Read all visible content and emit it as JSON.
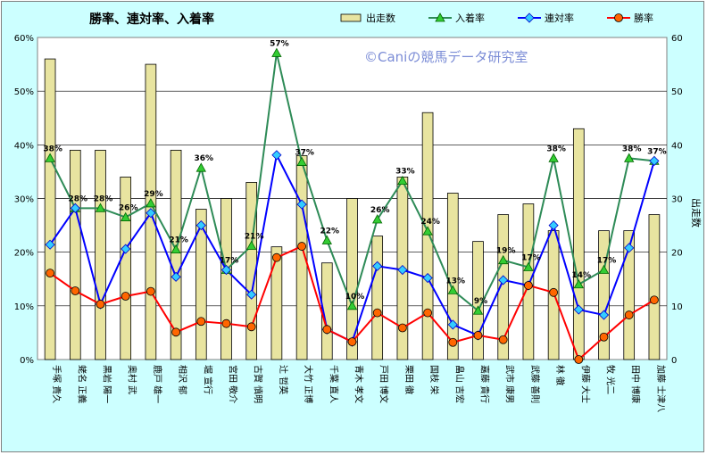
{
  "chart_data": {
    "type": "bar+line",
    "title": "勝率、連対率、入着率",
    "watermark": "©Caniの競馬データ研究室",
    "y2label": "出走数",
    "ylim": [
      0,
      60
    ],
    "y2lim": [
      0,
      60
    ],
    "y_ticks": [
      "0%",
      "10%",
      "20%",
      "30%",
      "40%",
      "50%",
      "60%"
    ],
    "y2_ticks": [
      "0",
      "10",
      "20",
      "30",
      "40",
      "50",
      "60"
    ],
    "grid": true,
    "legend_position": "top",
    "categories": [
      "手塚 貴久",
      "蛯名 正義",
      "黒岩 陽一",
      "奥村 武",
      "鹿戸 雄一",
      "相沢 郁",
      "堀 宣行",
      "宮田 敬介",
      "古賀 慎明",
      "辻 哲英",
      "大竹 正博",
      "千葉 直人",
      "青木 孝文",
      "戸田 博文",
      "栗田 徹",
      "国枝 栄",
      "畠山 吉宏",
      "嘉藤 貴行",
      "武市 康男",
      "武藤 善則",
      "林 徹",
      "伊藤 大士",
      "牧 光二",
      "田中 博康",
      "加藤 士津八"
    ],
    "series": [
      {
        "name": "出走数",
        "type": "bar",
        "axis": "right",
        "color": "#e8e4a0",
        "values": [
          56,
          39,
          39,
          34,
          55,
          39,
          28,
          30,
          33,
          21,
          38,
          18,
          30,
          23,
          34,
          46,
          31,
          22,
          27,
          29,
          24,
          43,
          24,
          24,
          27
        ]
      },
      {
        "name": "入着率",
        "type": "line",
        "axis": "left",
        "color": "#2e8b57",
        "marker": "triangle",
        "values": [
          37.5,
          28.2,
          28.2,
          26.5,
          29.1,
          20.5,
          35.7,
          16.7,
          21.2,
          57.1,
          36.8,
          22.2,
          10.0,
          26.1,
          33.3,
          23.9,
          12.9,
          9.1,
          18.5,
          17.2,
          37.5,
          14.0,
          16.7,
          37.5,
          37.0
        ]
      },
      {
        "name": "連対率",
        "type": "line",
        "axis": "left",
        "color": "#0000ff",
        "marker": "diamond",
        "values": [
          21.4,
          28.2,
          10.3,
          20.6,
          27.3,
          15.4,
          25.0,
          16.7,
          12.1,
          38.1,
          28.9,
          5.6,
          3.3,
          17.4,
          16.7,
          15.2,
          6.5,
          4.5,
          14.8,
          13.8,
          25.0,
          9.3,
          8.3,
          20.8,
          37.0
        ]
      },
      {
        "name": "勝率",
        "type": "line",
        "axis": "left",
        "color": "#ff0000",
        "marker": "circle",
        "values": [
          16.1,
          12.8,
          10.3,
          11.8,
          12.7,
          5.1,
          7.1,
          6.7,
          6.1,
          19.0,
          21.1,
          5.6,
          3.3,
          8.7,
          5.9,
          8.7,
          3.2,
          4.5,
          3.7,
          13.8,
          12.5,
          0.0,
          4.2,
          8.3,
          11.1
        ]
      }
    ],
    "data_labels": [
      "38%",
      "28%",
      "28%",
      "26%",
      "29%",
      "21%",
      "36%",
      "17%",
      "21%",
      "57%",
      "37%",
      "22%",
      "10%",
      "26%",
      "33%",
      "24%",
      "13%",
      "9%",
      "19%",
      "17%",
      "38%",
      "14%",
      "17%",
      "38%",
      "37%"
    ]
  }
}
